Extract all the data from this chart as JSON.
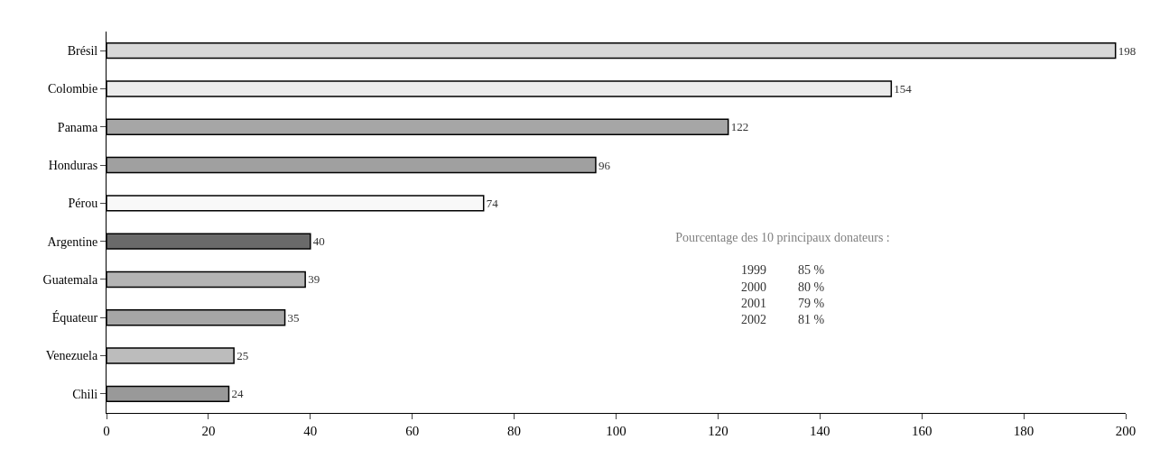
{
  "chart_data": {
    "type": "bar",
    "orientation": "horizontal",
    "categories": [
      "Brésil",
      "Colombie",
      "Panama",
      "Honduras",
      "Pérou",
      "Argentine",
      "Guatemala",
      "Équateur",
      "Venezuela",
      "Chili"
    ],
    "values": [
      198,
      154,
      122,
      96,
      74,
      40,
      39,
      35,
      25,
      24
    ],
    "colors": [
      "#d8d8d8",
      "#ebebeb",
      "#a6a6a6",
      "#a0a0a0",
      "#f8f8f8",
      "#6a6a6a",
      "#b4b4b4",
      "#a6a6a6",
      "#bcbcbc",
      "#999999"
    ],
    "xlim": [
      0,
      200
    ],
    "xticks": [
      0,
      20,
      40,
      60,
      80,
      100,
      120,
      140,
      160,
      180,
      200
    ],
    "data_labels": true,
    "annotations": [
      "Pourcentage des 10 principaux donateurs :",
      "1999          85 %",
      "2000          80 %",
      "2001          79 %",
      "2002          81 %"
    ]
  }
}
